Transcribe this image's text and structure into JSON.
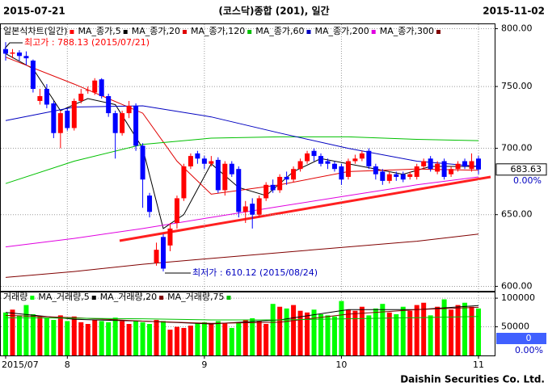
{
  "header": {
    "start": "2015-07-21",
    "title": "(코스닥)종합 (201), 일간",
    "end": "2015-11-02"
  },
  "chart_data": [
    {
      "type": "candlestick",
      "title": "일본식차트(일간)",
      "categories": [
        "2015/07",
        null,
        null,
        null,
        null,
        null,
        null,
        null,
        null,
        "8",
        null,
        null,
        null,
        null,
        null,
        null,
        null,
        null,
        null,
        null,
        null,
        null,
        null,
        null,
        null,
        null,
        null,
        null,
        null,
        "9",
        null,
        null,
        null,
        null,
        null,
        null,
        null,
        null,
        null,
        null,
        null,
        null,
        null,
        null,
        null,
        null,
        null,
        null,
        null,
        "10",
        null,
        null,
        null,
        null,
        null,
        null,
        null,
        null,
        null,
        null,
        null,
        null,
        null,
        null,
        null,
        null,
        null,
        null,
        null,
        "11"
      ],
      "open": [
        782,
        778,
        779,
        776,
        772,
        738,
        748,
        736,
        712,
        730,
        716,
        738,
        747,
        745,
        756,
        742,
        728,
        712,
        728,
        734,
        702,
        664,
        616,
        634,
        628,
        644,
        662,
        686,
        696,
        692,
        688,
        691,
        668,
        688,
        684,
        652,
        658,
        650,
        662,
        672,
        668,
        678,
        676,
        684,
        690,
        698,
        694,
        690,
        688,
        686,
        678,
        690,
        692,
        698,
        686,
        682,
        675,
        680,
        680,
        678,
        678,
        686,
        692,
        682,
        690,
        680,
        684,
        690,
        684,
        692
      ],
      "high": [
        788.13,
        782,
        781,
        780,
        773,
        748,
        752,
        738,
        730,
        732,
        740,
        748,
        750,
        757,
        757,
        744,
        730,
        730,
        738,
        736,
        704,
        666,
        630,
        636,
        644,
        664,
        688,
        696,
        698,
        694,
        694,
        693,
        690,
        690,
        686,
        660,
        662,
        664,
        674,
        676,
        680,
        682,
        686,
        692,
        698,
        700,
        696,
        692,
        690,
        688,
        692,
        695,
        698,
        700,
        688,
        684,
        682,
        682,
        682,
        682,
        688,
        692,
        694,
        690,
        692,
        686,
        690,
        692,
        696,
        694
      ],
      "low": [
        772,
        774,
        772,
        768,
        745,
        735,
        732,
        708,
        700,
        714,
        714,
        736,
        744,
        743,
        740,
        725,
        692,
        710,
        724,
        698,
        655,
        648,
        614,
        610.12,
        624,
        640,
        660,
        684,
        688,
        684,
        686,
        666,
        664,
        678,
        648,
        644,
        640,
        648,
        660,
        666,
        666,
        672,
        674,
        682,
        688,
        690,
        686,
        684,
        682,
        672,
        676,
        688,
        690,
        684,
        676,
        672,
        673,
        675,
        674,
        676,
        676,
        684,
        682,
        680,
        676,
        678,
        682,
        684,
        682,
        680
      ],
      "close": [
        778,
        779,
        776,
        774,
        748,
        742,
        735,
        712,
        728,
        716,
        738,
        744,
        747,
        755,
        742,
        728,
        712,
        728,
        734,
        702,
        676,
        652,
        625,
        612,
        640,
        662,
        686,
        694,
        692,
        688,
        690,
        668,
        688,
        680,
        652,
        656,
        650,
        662,
        672,
        668,
        678,
        676,
        684,
        690,
        696,
        694,
        688,
        688,
        684,
        676,
        690,
        692,
        696,
        686,
        680,
        675,
        680,
        678,
        676,
        680,
        686,
        690,
        684,
        688,
        678,
        684,
        688,
        686,
        690,
        683.63
      ],
      "up_color": "#ff0000",
      "down_color": "#0000ff",
      "log_scale": true,
      "grid": true,
      "ylim": [
        597,
        804
      ],
      "yticks": [
        {
          "value": 600,
          "label": "600.00"
        },
        {
          "value": 650,
          "label": "650.00"
        },
        {
          "value": 700,
          "label": "700.00"
        },
        {
          "value": 750,
          "label": "750.00"
        },
        {
          "value": 800,
          "label": "800.00"
        }
      ],
      "change_label": "0.00%",
      "annotations": [
        "최고가 : 788.13 (2015/07/21)",
        "최저가 : 610.12 (2015/08/24)"
      ],
      "series": [
        {
          "name": "MA_종가,5",
          "color": "#000000",
          "x": [
            0,
            4,
            8,
            12,
            16,
            20,
            23,
            26,
            30,
            34,
            38,
            42,
            46,
            50,
            54,
            58,
            62,
            66,
            69
          ],
          "values": [
            778,
            765,
            730,
            740,
            735,
            700,
            640,
            650,
            688,
            670,
            664,
            682,
            692,
            688,
            684,
            680,
            686,
            686,
            686
          ]
        },
        {
          "name": "MA_종가,20",
          "color": "#e00000",
          "x": [
            0,
            10,
            20,
            25,
            30,
            40,
            50,
            60,
            69
          ],
          "values": [
            775,
            752,
            728,
            690,
            665,
            672,
            682,
            684,
            683
          ]
        },
        {
          "name": "MA_종가,120",
          "color": "#00c000",
          "x": [
            0,
            10,
            20,
            30,
            40,
            50,
            60,
            69
          ],
          "values": [
            673,
            690,
            703,
            708,
            709,
            709,
            707,
            706
          ]
        },
        {
          "name": "MA_종가,60",
          "color": "#0000c0",
          "x": [
            0,
            10,
            20,
            30,
            40,
            50,
            60,
            69
          ],
          "values": [
            722,
            733,
            734,
            725,
            712,
            700,
            690,
            686
          ]
        },
        {
          "name": "MA_종가,200",
          "color": "#e000e0",
          "x": [
            0,
            10,
            20,
            30,
            40,
            50,
            60,
            69
          ],
          "values": [
            627,
            633,
            640,
            648,
            656,
            664,
            672,
            678
          ]
        },
        {
          "name": "MA_종가,300",
          "color": "#800000",
          "x": [
            0,
            10,
            20,
            30,
            40,
            50,
            60,
            69
          ],
          "values": [
            606,
            610,
            615,
            619,
            623,
            627,
            631,
            636
          ]
        }
      ]
    },
    {
      "type": "volume",
      "title": "거래량",
      "values": [
        75000,
        80000,
        70000,
        88000,
        72000,
        68000,
        65000,
        62000,
        70000,
        60000,
        68000,
        58000,
        55000,
        62000,
        60000,
        58000,
        66000,
        60000,
        55000,
        60000,
        58000,
        55000,
        62000,
        60000,
        45000,
        50000,
        48000,
        52000,
        56000,
        58000,
        55000,
        60000,
        56000,
        48000,
        58000,
        62000,
        65000,
        60000,
        55000,
        90000,
        85000,
        82000,
        88000,
        78000,
        75000,
        80000,
        72000,
        70000,
        68000,
        95000,
        80000,
        78000,
        85000,
        70000,
        82000,
        90000,
        75000,
        72000,
        85000,
        78000,
        88000,
        92000,
        70000,
        85000,
        98000,
        80000,
        88000,
        92000,
        85000,
        82000
      ],
      "up_color": "#ff0000",
      "down_color": "#00ff00",
      "ylim": [
        0,
        110000
      ],
      "yticks": [
        50000,
        100000
      ],
      "current_value": 0,
      "change_label": "0.00%",
      "series": [
        {
          "name": "MA_거래량,5",
          "color": "#000000",
          "x": [
            0,
            10,
            20,
            30,
            40,
            50,
            60,
            69
          ],
          "values": [
            75000,
            63000,
            60000,
            55000,
            62000,
            80000,
            80000,
            87000
          ]
        },
        {
          "name": "MA_거래량,20",
          "color": "#800000",
          "x": [
            0,
            10,
            20,
            30,
            40,
            50,
            60,
            69
          ],
          "values": [
            70000,
            66000,
            60000,
            56000,
            58000,
            72000,
            80000,
            84000
          ]
        },
        {
          "name": "MA_거래량,75",
          "color": "#00c000",
          "x": [
            0,
            10,
            20,
            30,
            40,
            50,
            60,
            69
          ],
          "values": [
            66000,
            65000,
            64000,
            62000,
            62000,
            64000,
            66000,
            68000
          ]
        }
      ]
    }
  ],
  "footer": "Daishin Securities Co. Ltd."
}
